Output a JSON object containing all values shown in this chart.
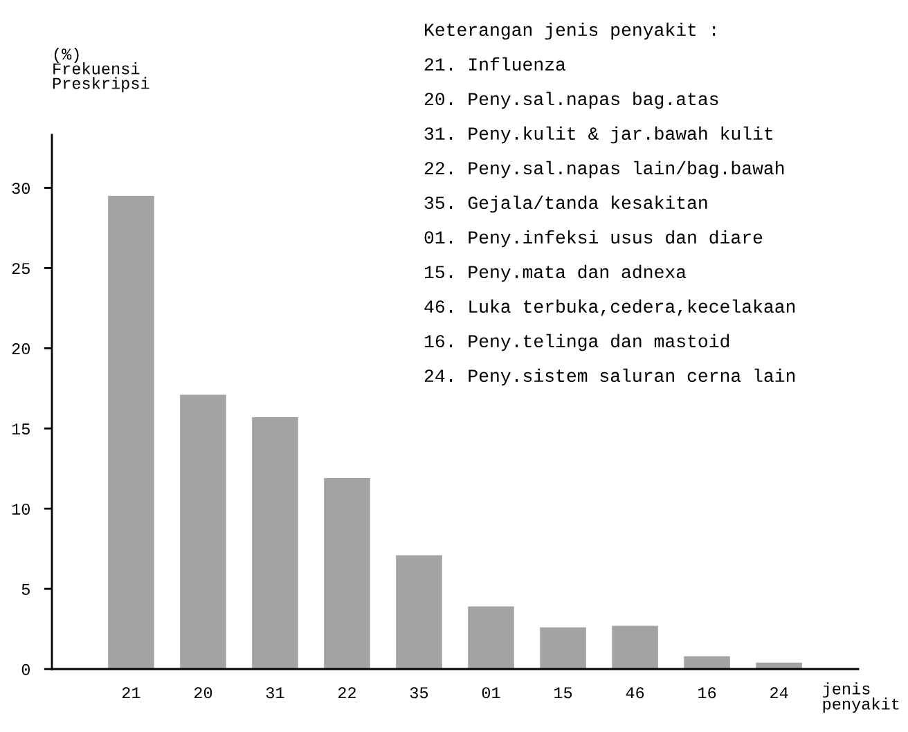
{
  "chart_data": {
    "type": "bar",
    "categories": [
      "21",
      "20",
      "31",
      "22",
      "35",
      "01",
      "15",
      "46",
      "16",
      "24"
    ],
    "values": [
      29.5,
      17.1,
      15.7,
      11.9,
      7.1,
      3.9,
      2.6,
      2.7,
      0.8,
      0.4
    ],
    "color": "#a3a3a3",
    "ylabel": "(%)\nFrekuensi\nPreskripsi",
    "xlabel": "jenis\npenyakit",
    "ylim": [
      0,
      33.3
    ],
    "yticks": [
      0,
      5,
      10,
      15,
      20,
      25,
      30
    ],
    "grid": false,
    "annotations": [
      "Keterangan jenis penyakit :",
      "21. Influenza",
      "20. Peny.sal.napas bag.atas",
      "31. Peny.kulit & jar.bawah kulit",
      "22. Peny.sal.napas lain/bag.bawah",
      "35. Gejala/tanda kesakitan",
      "01. Peny.infeksi usus dan diare",
      "15. Peny.mata dan adnexa",
      "46. Luka terbuka,cedera,kecelakaan",
      "16. Peny.telinga dan mastoid",
      "24. Peny.sistem saluran cerna lain"
    ]
  }
}
